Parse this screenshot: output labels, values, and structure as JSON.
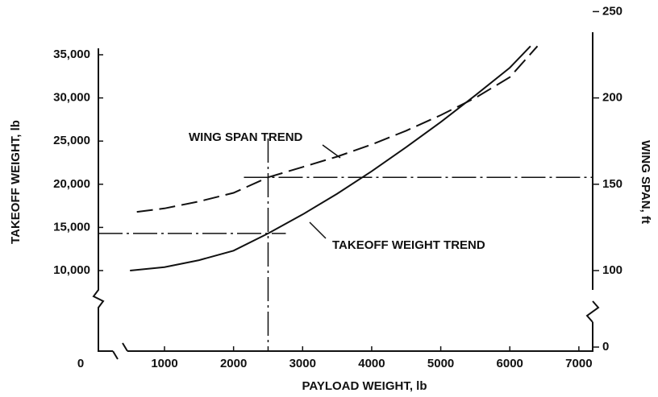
{
  "chart_data": {
    "type": "line",
    "x_label": "PAYLOAD WEIGHT, lb",
    "y_label": "TAKEOFF WEIGHT, lb",
    "y2_label": "WING SPAN, ft",
    "xlim": [
      0,
      7200
    ],
    "xticks": [
      0,
      1000,
      2000,
      3000,
      4000,
      5000,
      6000,
      7000
    ],
    "ylim": [
      10000,
      40000
    ],
    "yticks": [
      {
        "value": 10000,
        "label": "10,000"
      },
      {
        "value": 15000,
        "label": "15,000"
      },
      {
        "value": 20000,
        "label": "20,000"
      },
      {
        "value": 25000,
        "label": "25,000"
      },
      {
        "value": 30000,
        "label": "30,000"
      },
      {
        "value": 35000,
        "label": "35,000"
      }
    ],
    "y2lim": [
      0,
      250
    ],
    "y2ticks": [
      0,
      100,
      150,
      200,
      250
    ],
    "series": [
      {
        "name": "TAKEOFF WEIGHT TREND",
        "color": "#111111",
        "dash": "solid",
        "x": [
          500,
          1000,
          1500,
          2000,
          2500,
          3000,
          3500,
          4000,
          4500,
          5000,
          5500,
          6000,
          6300
        ],
        "values": [
          10000,
          10400,
          11200,
          12300,
          14300,
          16500,
          18900,
          21500,
          24300,
          27200,
          30300,
          33500,
          36000
        ]
      },
      {
        "name": "WING SPAN TREND",
        "color": "#111111",
        "dash": "dashed",
        "axis": "y2",
        "x": [
          600,
          1000,
          1500,
          2000,
          2500,
          3000,
          3500,
          4000,
          4500,
          5000,
          5500,
          6000,
          6400
        ],
        "values": [
          134,
          136,
          140,
          145,
          154,
          160,
          166,
          173,
          181,
          190,
          200,
          212,
          230
        ]
      }
    ]
  }
}
